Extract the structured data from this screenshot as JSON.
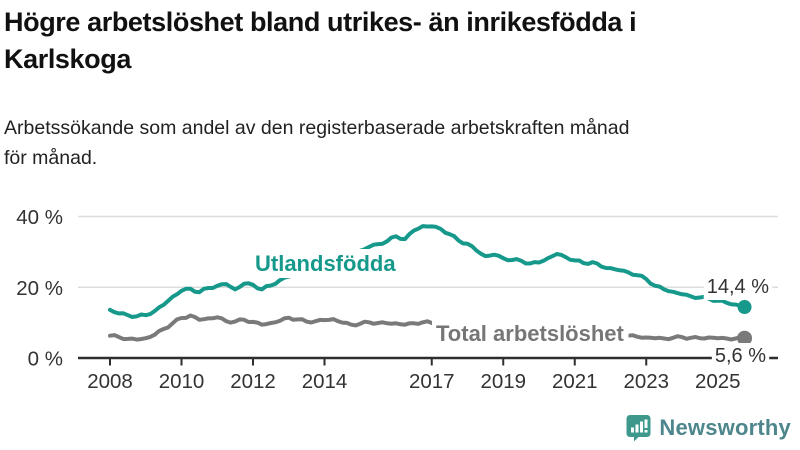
{
  "header": {
    "title_line1": "Högre arbetslöshet bland utrikes- än inrikesfödda i",
    "title_line2": "Karlskoga",
    "subtitle_line1": "Arbetssökande som andel av den registerbaserade arbetskraften månad",
    "subtitle_line2": "för månad."
  },
  "chart_data": {
    "type": "line",
    "unit": "%",
    "grid": true,
    "y_range": [
      0,
      40
    ],
    "x_range": [
      2007.1,
      2026.7
    ],
    "y_ticks": {
      "values": [
        0,
        20,
        40
      ],
      "labels": [
        "0 %",
        "20 %",
        "40 %"
      ]
    },
    "x_ticks": {
      "values": [
        2008,
        2010,
        2012,
        2014,
        2017,
        2019,
        2021,
        2023,
        2025
      ],
      "labels": [
        "2008",
        "2010",
        "2012",
        "2014",
        "2017",
        "2019",
        "2021",
        "2023",
        "2025"
      ]
    },
    "series": [
      {
        "name": "Utlandsfödda",
        "label_text": "Utlandsfödda",
        "end_label": "14,4 %",
        "end_value": 14.4,
        "color": "#16998b",
        "points": [
          [
            2008.0,
            13.6
          ],
          [
            2008.25,
            12.6
          ],
          [
            2008.5,
            12.1
          ],
          [
            2008.75,
            11.8
          ],
          [
            2009.0,
            12.1
          ],
          [
            2009.25,
            13.3
          ],
          [
            2009.5,
            15.0
          ],
          [
            2009.75,
            17.3
          ],
          [
            2010.0,
            19.0
          ],
          [
            2010.25,
            19.6
          ],
          [
            2010.5,
            18.6
          ],
          [
            2010.75,
            19.8
          ],
          [
            2011.0,
            20.4
          ],
          [
            2011.25,
            20.9
          ],
          [
            2011.5,
            19.4
          ],
          [
            2011.75,
            21.0
          ],
          [
            2012.0,
            20.7
          ],
          [
            2012.25,
            19.4
          ],
          [
            2012.5,
            20.5
          ],
          [
            2012.75,
            22.0
          ],
          [
            2013.0,
            23.0
          ],
          [
            2013.25,
            23.8
          ],
          [
            2013.5,
            24.3
          ],
          [
            2013.75,
            25.0
          ],
          [
            2014.0,
            26.0
          ],
          [
            2014.25,
            27.0
          ],
          [
            2014.5,
            28.2
          ],
          [
            2014.75,
            29.2
          ],
          [
            2015.0,
            30.3
          ],
          [
            2015.25,
            31.4
          ],
          [
            2015.5,
            32.2
          ],
          [
            2015.75,
            33.0
          ],
          [
            2016.0,
            34.4
          ],
          [
            2016.25,
            33.6
          ],
          [
            2016.5,
            36.0
          ],
          [
            2016.75,
            37.3
          ],
          [
            2017.0,
            37.2
          ],
          [
            2017.25,
            36.5
          ],
          [
            2017.5,
            35.0
          ],
          [
            2017.75,
            33.2
          ],
          [
            2018.0,
            32.3
          ],
          [
            2018.25,
            30.4
          ],
          [
            2018.5,
            28.8
          ],
          [
            2018.75,
            29.2
          ],
          [
            2019.0,
            28.2
          ],
          [
            2019.25,
            27.7
          ],
          [
            2019.5,
            27.5
          ],
          [
            2019.75,
            26.7
          ],
          [
            2020.0,
            27.0
          ],
          [
            2020.25,
            28.2
          ],
          [
            2020.5,
            29.4
          ],
          [
            2020.75,
            28.5
          ],
          [
            2021.0,
            27.6
          ],
          [
            2021.25,
            26.8
          ],
          [
            2021.5,
            27.1
          ],
          [
            2021.75,
            25.8
          ],
          [
            2022.0,
            25.4
          ],
          [
            2022.25,
            24.8
          ],
          [
            2022.5,
            24.2
          ],
          [
            2022.75,
            23.4
          ],
          [
            2023.0,
            22.3
          ],
          [
            2023.25,
            20.4
          ],
          [
            2023.5,
            19.4
          ],
          [
            2023.75,
            18.7
          ],
          [
            2024.0,
            18.0
          ],
          [
            2024.25,
            17.4
          ],
          [
            2024.5,
            17.1
          ],
          [
            2024.75,
            16.8
          ],
          [
            2025.0,
            16.2
          ],
          [
            2025.25,
            15.6
          ],
          [
            2025.5,
            15.1
          ],
          [
            2025.75,
            14.4
          ]
        ]
      },
      {
        "name": "Total arbetslöshet",
        "label_text": "Total arbetslöshet",
        "end_label": "5,6 %",
        "end_value": 5.6,
        "color": "#7a7a7a",
        "points": [
          [
            2008.0,
            6.3
          ],
          [
            2008.25,
            5.9
          ],
          [
            2008.5,
            5.4
          ],
          [
            2008.75,
            5.2
          ],
          [
            2009.0,
            5.6
          ],
          [
            2009.25,
            6.6
          ],
          [
            2009.5,
            8.2
          ],
          [
            2009.75,
            9.8
          ],
          [
            2010.0,
            11.3
          ],
          [
            2010.25,
            12.0
          ],
          [
            2010.5,
            10.8
          ],
          [
            2010.75,
            11.2
          ],
          [
            2011.0,
            11.5
          ],
          [
            2011.25,
            10.4
          ],
          [
            2011.5,
            10.3
          ],
          [
            2011.75,
            10.8
          ],
          [
            2012.0,
            10.2
          ],
          [
            2012.25,
            9.4
          ],
          [
            2012.5,
            9.9
          ],
          [
            2012.75,
            10.5
          ],
          [
            2013.0,
            11.4
          ],
          [
            2013.25,
            10.9
          ],
          [
            2013.5,
            10.3
          ],
          [
            2013.75,
            10.4
          ],
          [
            2014.0,
            10.7
          ],
          [
            2014.25,
            11.0
          ],
          [
            2014.5,
            10.0
          ],
          [
            2014.75,
            9.4
          ],
          [
            2015.0,
            9.7
          ],
          [
            2015.25,
            10.1
          ],
          [
            2015.5,
            9.9
          ],
          [
            2015.75,
            9.8
          ],
          [
            2016.0,
            9.8
          ],
          [
            2016.25,
            9.4
          ],
          [
            2016.5,
            9.8
          ],
          [
            2016.75,
            10.1
          ],
          [
            2017.0,
            9.9
          ],
          [
            2017.25,
            9.6
          ],
          [
            2017.5,
            9.2
          ],
          [
            2017.75,
            8.9
          ],
          [
            2018.0,
            8.6
          ],
          [
            2018.25,
            8.3
          ],
          [
            2018.5,
            8.1
          ],
          [
            2018.75,
            7.9
          ],
          [
            2019.0,
            7.7
          ],
          [
            2019.25,
            7.5
          ],
          [
            2019.5,
            7.4
          ],
          [
            2019.75,
            7.6
          ],
          [
            2020.0,
            8.0
          ],
          [
            2020.25,
            9.0
          ],
          [
            2020.5,
            9.3
          ],
          [
            2020.75,
            9.0
          ],
          [
            2021.0,
            8.6
          ],
          [
            2021.25,
            8.2
          ],
          [
            2021.5,
            7.8
          ],
          [
            2021.75,
            7.4
          ],
          [
            2022.0,
            7.0
          ],
          [
            2022.25,
            6.6
          ],
          [
            2022.5,
            6.3
          ],
          [
            2022.75,
            6.0
          ],
          [
            2023.0,
            5.8
          ],
          [
            2023.25,
            5.6
          ],
          [
            2023.5,
            5.5
          ],
          [
            2023.75,
            5.7
          ],
          [
            2024.0,
            5.9
          ],
          [
            2024.25,
            5.7
          ],
          [
            2024.5,
            5.6
          ],
          [
            2024.75,
            5.8
          ],
          [
            2025.0,
            5.6
          ],
          [
            2025.25,
            5.5
          ],
          [
            2025.5,
            5.5
          ],
          [
            2025.75,
            5.6
          ]
        ]
      }
    ],
    "colors": {
      "grid": "#dcdcdc",
      "axis": "#2e2e2e",
      "tick_label": "#333333",
      "annotation": "#333333"
    }
  },
  "branding": {
    "logo_text": "Newsworthy",
    "logo_text_color": "#4d868c",
    "logo_icon_color": "#3e998c"
  }
}
